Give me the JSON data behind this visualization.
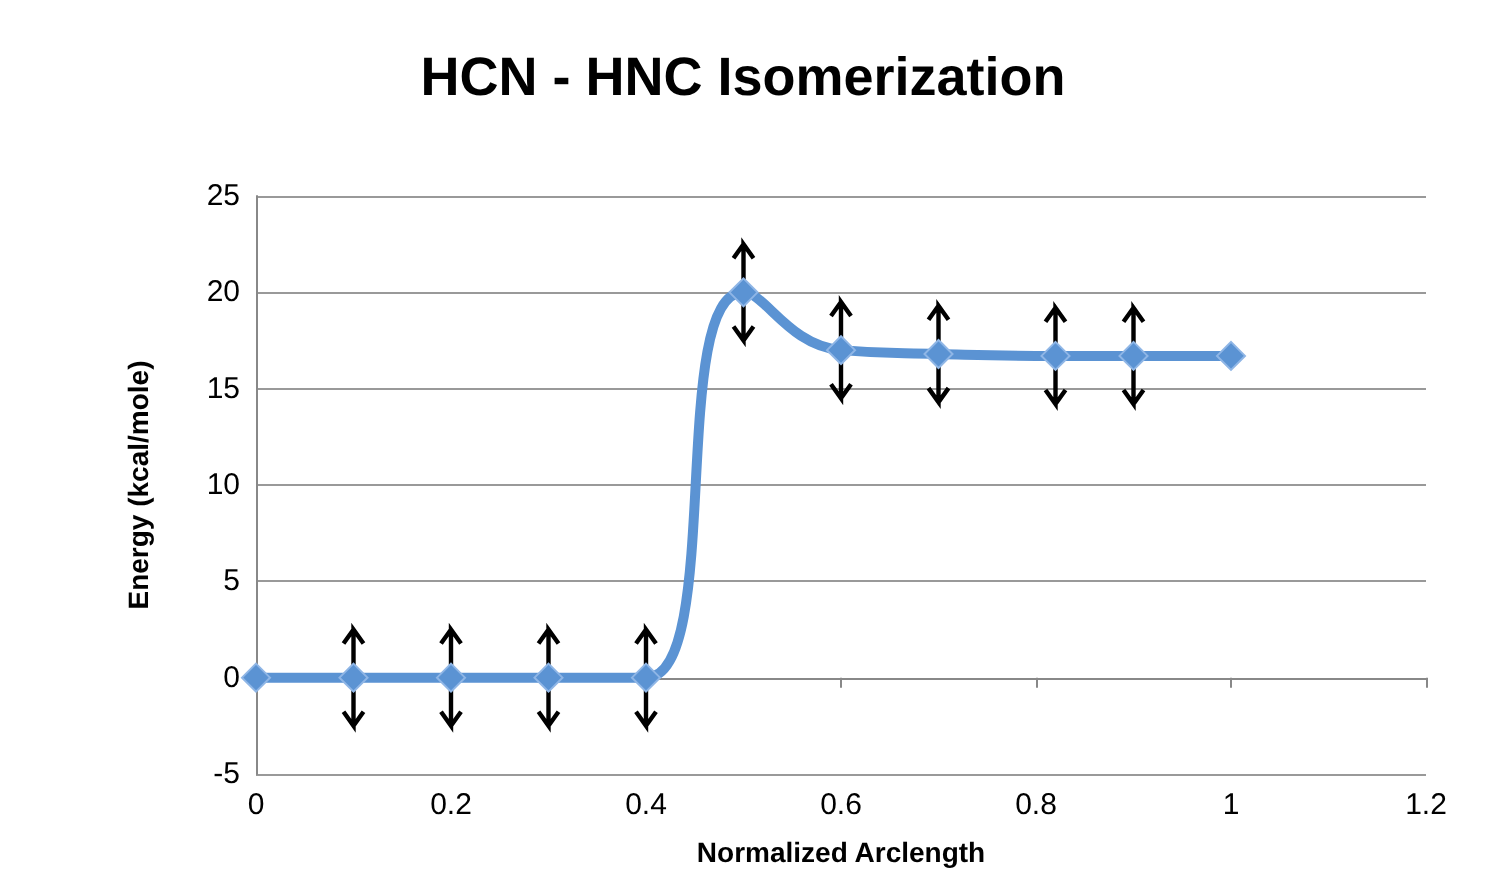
{
  "chart_data": {
    "type": "line",
    "title": "HCN - HNC Isomerization",
    "xlabel": "Normalized Arclength",
    "ylabel": "Energy (kcal/mole)",
    "x": [
      0,
      0.1,
      0.2,
      0.3,
      0.4,
      0.5,
      0.6,
      0.7,
      0.82,
      0.9,
      1.0
    ],
    "series": [
      {
        "color": "#5b93d3",
        "values": [
          0,
          0,
          0,
          0,
          0,
          20,
          17,
          16.8,
          16.7,
          16.7,
          16.7
        ],
        "errors": [
          null,
          2.5,
          2.5,
          2.5,
          2.5,
          2.5,
          2.5,
          2.5,
          2.5,
          2.5,
          null
        ]
      }
    ],
    "xlim": [
      0,
      1.2
    ],
    "xticks": [
      0,
      0.2,
      0.4,
      0.6,
      0.8,
      1,
      1.2
    ],
    "ylim": [
      -5,
      25
    ],
    "yticks": [
      -5,
      0,
      5,
      10,
      15,
      20,
      25
    ],
    "grid": "y",
    "marker": "diamond",
    "line_style": "solid"
  }
}
